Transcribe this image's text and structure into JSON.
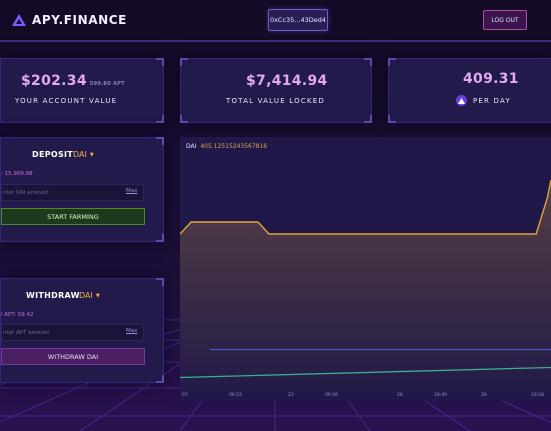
{
  "header": {
    "logo_text": "APY.FINANCE",
    "wallet_address": "0xCc35...43Ded4",
    "logout_label": "LOG OUT"
  },
  "stats": {
    "account": {
      "value": "$202.34",
      "sub": "599.80 APT",
      "label": "YOUR ACCOUNT VALUE"
    },
    "tvl": {
      "value": "$7,414.94",
      "label": "TOTAL VALUE LOCKED"
    },
    "rate": {
      "value": "409.31",
      "label": "PER DAY",
      "icon": "apt-token-icon"
    }
  },
  "deposit": {
    "title": "DEPOSIT",
    "token": "DAI",
    "balance": ": 15,969.98",
    "input_placeholder": "nter DAI amount",
    "max_label": "Max",
    "button_label": "START FARMING"
  },
  "withdraw": {
    "title": "WITHDRAW",
    "token": "DAI",
    "balance": "l APT: 59.42",
    "input_placeholder": "nter APT amount",
    "max_label": "Max",
    "button_label": "WITHDRAW DAI"
  },
  "chart": {
    "legend_name": "DAI",
    "legend_value": "405.12515243567816",
    "x_ticks": [
      "07",
      "06:52",
      "23",
      "09:56",
      "26",
      "19:49",
      "29",
      "19:28"
    ]
  },
  "chart_data": {
    "type": "line",
    "series": [
      {
        "name": "DAI",
        "color": "#e2a43c",
        "x": [
          0,
          3,
          6,
          9,
          12,
          15,
          18,
          21,
          24,
          27,
          30,
          33,
          36,
          39,
          42,
          45,
          48,
          51,
          54,
          57,
          60,
          63,
          66,
          69,
          72,
          75,
          78,
          81,
          84,
          87,
          90,
          93,
          96,
          99,
          100
        ],
        "y": [
          406,
          408,
          408,
          408,
          408,
          408,
          408,
          408,
          406,
          406,
          406,
          406,
          406,
          406,
          406,
          406,
          406,
          406,
          406,
          406,
          406,
          406,
          406,
          406,
          406,
          406,
          406,
          406,
          406,
          406,
          406,
          406,
          406,
          412,
          415
        ]
      },
      {
        "color": "#3d58c8",
        "y_level": 0.45
      },
      {
        "color": "#3fae92",
        "y_level": 0.25
      }
    ],
    "colors": {
      "accent": "#e3a8f0",
      "token": "#f2b24a",
      "farm": "#4b8b2a",
      "withdraw": "#7b3aa3"
    }
  }
}
